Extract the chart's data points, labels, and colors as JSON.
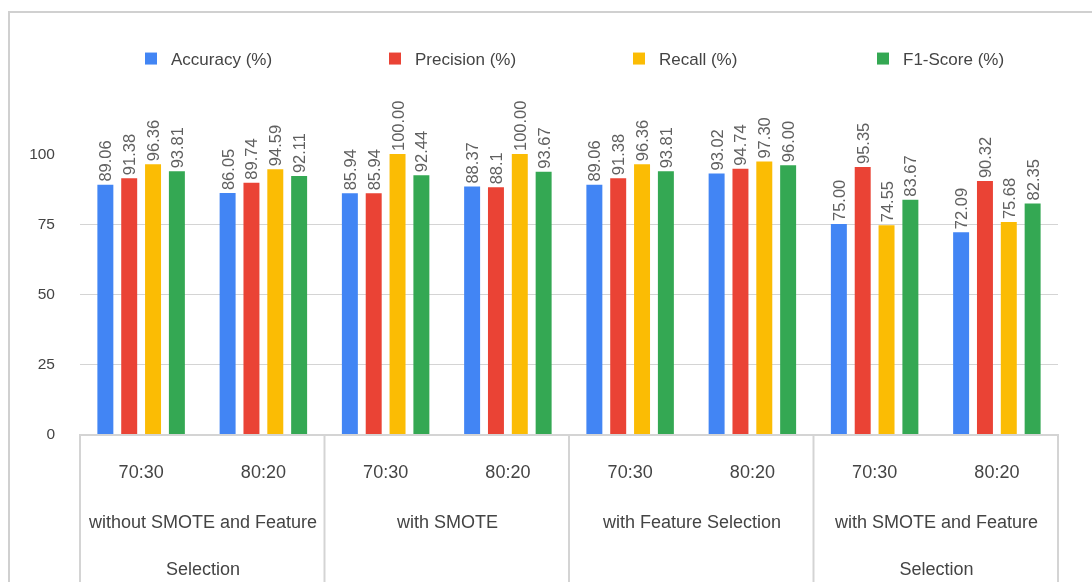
{
  "chart_data": {
    "type": "bar",
    "categories": [
      "70:30",
      "80:20",
      "70:30",
      "80:20",
      "70:30",
      "80:20",
      "70:30",
      "80:20"
    ],
    "annotations": [
      "without SMOTE and Feature Selection",
      "with SMOTE",
      "with Feature Selection",
      "with SMOTE and Feature Selection"
    ],
    "series": [
      {
        "name": "Accuracy (%)",
        "color": "#4285f4",
        "values": [
          89.06,
          86.05,
          85.94,
          88.37,
          89.06,
          93.02,
          75.0,
          72.09
        ],
        "value_labels": [
          "89.06",
          "86.05",
          "85.94",
          "88.37",
          "89.06",
          "93.02",
          "75.00",
          "72.09"
        ]
      },
      {
        "name": "Precision (%)",
        "color": "#ea4335",
        "values": [
          91.38,
          89.74,
          85.94,
          88.1,
          91.38,
          94.74,
          95.35,
          90.32
        ],
        "value_labels": [
          "91.38",
          "89.74",
          "85.94",
          "88.1",
          "91.38",
          "94.74",
          "95.35",
          "90.32"
        ]
      },
      {
        "name": "Recall (%)",
        "color": "#fbbc04",
        "values": [
          96.36,
          94.59,
          100.0,
          100.0,
          96.36,
          97.3,
          74.55,
          75.68
        ],
        "value_labels": [
          "96.36",
          "94.59",
          "100.00",
          "100.00",
          "96.36",
          "97.30",
          "74.55",
          "75.68"
        ]
      },
      {
        "name": "F1-Score (%)",
        "color": "#34a853",
        "values": [
          93.81,
          92.11,
          92.44,
          93.67,
          93.81,
          96.0,
          83.67,
          82.35
        ],
        "value_labels": [
          "93.81",
          "92.11",
          "92.44",
          "93.67",
          "93.81",
          "96.00",
          "83.67",
          "82.35"
        ]
      }
    ],
    "ylim": [
      0,
      100
    ],
    "yticks": [
      0,
      25,
      50,
      75,
      100
    ],
    "grid": "y",
    "legend": "top"
  }
}
